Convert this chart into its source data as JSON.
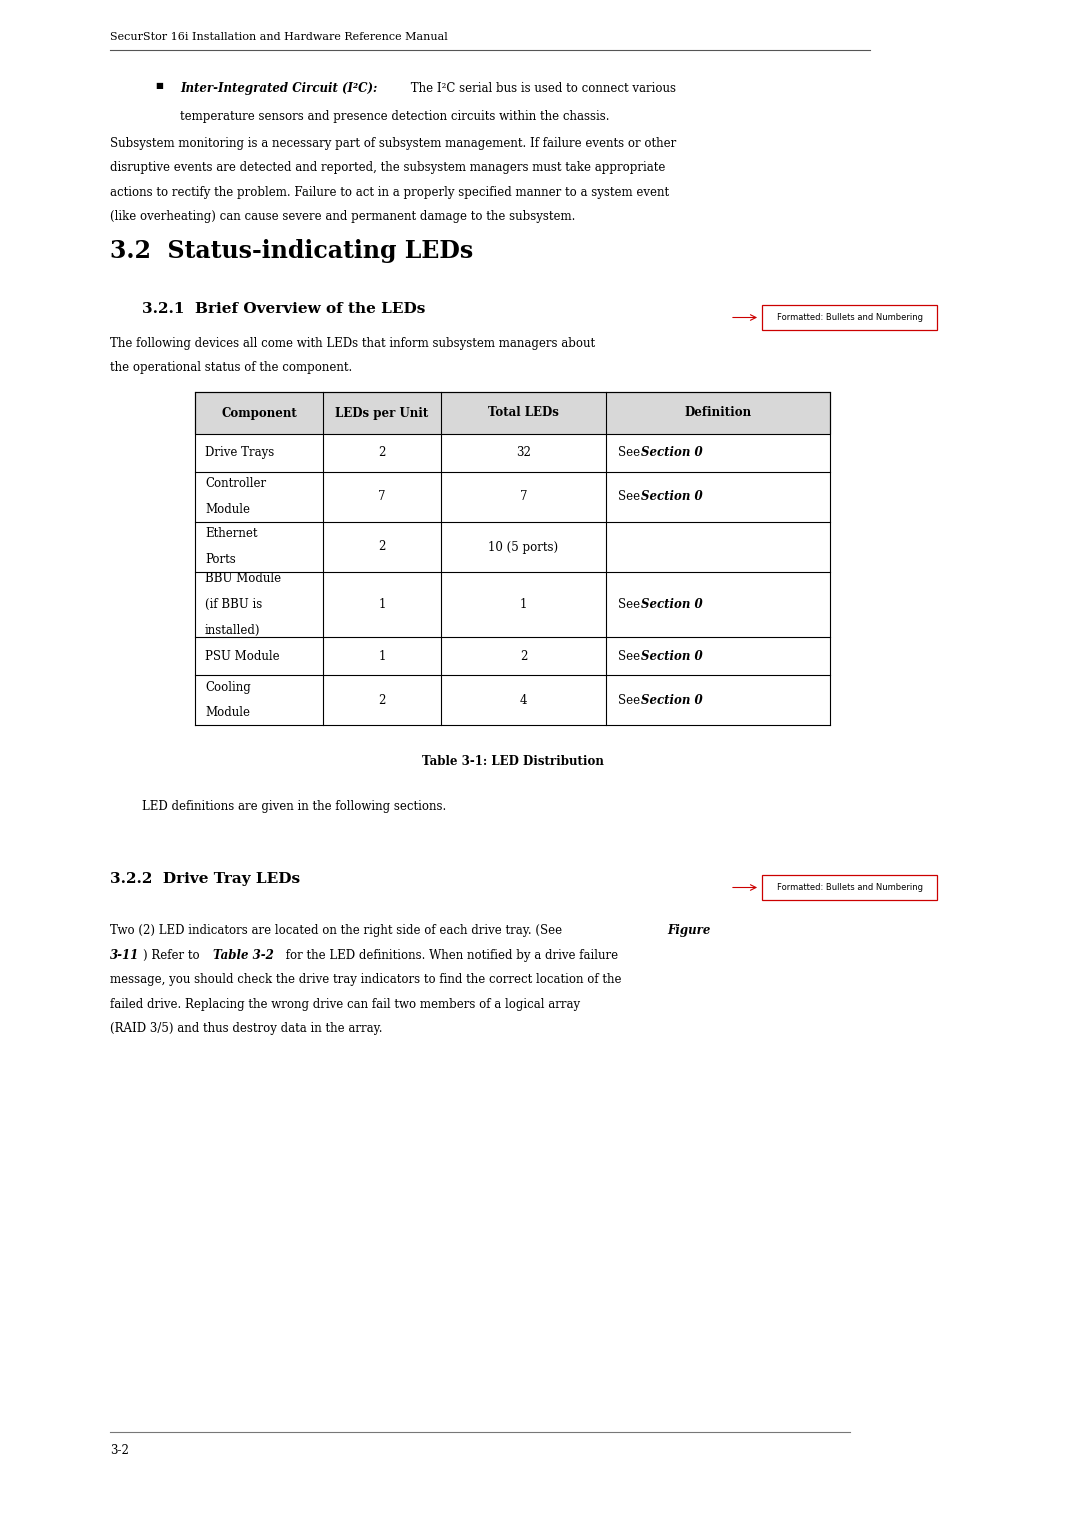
{
  "page_width": 10.8,
  "page_height": 15.27,
  "bg_color": "#ffffff",
  "header_text": "SecurStor 16i Installation and Hardware Reference Manual",
  "bullet_bold_italic": "Inter-Integrated Circuit (I²C):",
  "bullet_normal": " The I²C serial bus is used to connect various",
  "bullet_normal2": "temperature sensors and presence detection circuits within the chassis.",
  "para1_lines": [
    "Subsystem monitoring is a necessary part of subsystem management. If failure events or other",
    "disruptive events are detected and reported, the subsystem managers must take appropriate",
    "actions to rectify the problem. Failure to act in a properly specified manner to a system event",
    "(like overheating) can cause severe and permanent damage to the subsystem."
  ],
  "section_title": "3.2  Status-indicating LEDs",
  "sub1_title": "3.2.1  Brief Overview of the LEDs",
  "sub1_intro": [
    "The following devices all come with LEDs that inform subsystem managers about",
    "the operational status of the component."
  ],
  "table_headers": [
    "Component",
    "LEDs per Unit",
    "Total LEDs",
    "Definition"
  ],
  "table_rows": [
    [
      "Drive Trays",
      "2",
      "32",
      "See Section 0"
    ],
    [
      "Controller\nModule",
      "7",
      "7",
      "See Section 0"
    ],
    [
      "Ethernet\nPorts",
      "2",
      "10 (5 ports)",
      ""
    ],
    [
      "BBU Module\n(if BBU is\ninstalled)",
      "1",
      "1",
      "See Section 0"
    ],
    [
      "PSU Module",
      "1",
      "2",
      "See Section 0"
    ],
    [
      "Cooling\nModule",
      "2",
      "4",
      "See Section 0"
    ]
  ],
  "table_caption": "Table 3-1: LED Distribution",
  "led_def": "LED definitions are given in the following sections.",
  "sub2_title": "3.2.2  Drive Tray LEDs",
  "sub2_para": [
    [
      "Two (2) LED indicators are located on the right side of each drive tray. (See ",
      false,
      false,
      "Figure",
      true,
      true
    ],
    [
      "3-11",
      true,
      true,
      ") Refer to ",
      false,
      false,
      "Table 3-2",
      true,
      true,
      " for the LED definitions. When notified by a drive failure",
      false,
      false
    ],
    [
      "message, you should check the drive tray indicators to find the correct location of the",
      false,
      false
    ],
    [
      "failed drive. Replacing the wrong drive can fail two members of a logical array",
      false,
      false
    ],
    [
      "(RAID 3/5) and thus destroy data in the array.",
      false,
      false
    ]
  ],
  "footer_text": "3-2",
  "formatted_box_text": "Formatted: Bullets and Numbering",
  "box_border": "#cc0000",
  "arrow_color": "#cc0000",
  "text_color": "#000000",
  "header_gray": "#d8d8d8",
  "table_border": "#000000"
}
